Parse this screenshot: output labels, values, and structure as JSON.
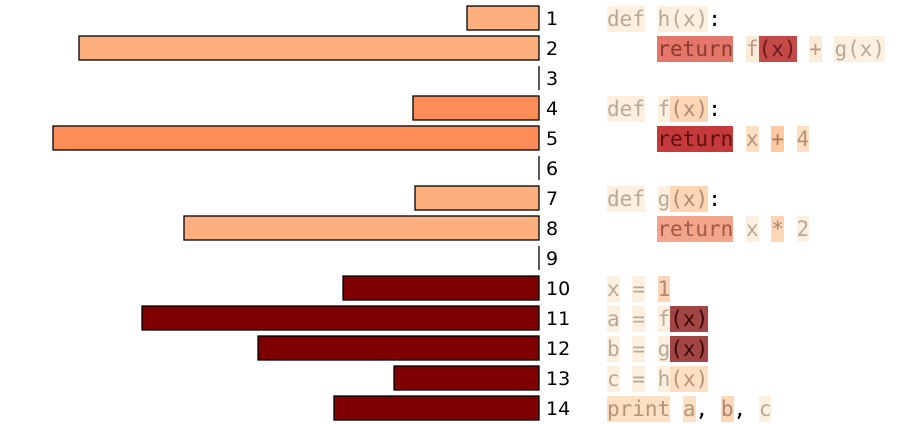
{
  "lines": [
    {
      "num": "1",
      "bar": 72,
      "color": "#fdb07e",
      "indent": 0,
      "tokens": [
        {
          "t": "def",
          "bg": "#fef0e1",
          "fg": "#b8a898"
        },
        {
          "t": " "
        },
        {
          "t": "h",
          "bg": "#fef0e1",
          "fg": "#b8a898"
        },
        {
          "t": "(x)",
          "bg": "#fef0e1",
          "fg": "#b8a898"
        },
        {
          "t": ":",
          "fg": "#000000"
        }
      ]
    },
    {
      "num": "2",
      "bar": 460,
      "color": "#fdb07e",
      "indent": 2,
      "tokens": [
        {
          "t": "return",
          "bg": "#e4776a",
          "fg": "#8a3a30"
        },
        {
          "t": " "
        },
        {
          "t": "f",
          "bg": "#fdebd8",
          "fg": "#c0988a"
        },
        {
          "t": "(x)",
          "bg": "#c44a4a",
          "fg": "#6a1a1a"
        },
        {
          "t": " "
        },
        {
          "t": "+",
          "bg": "#fdebd8",
          "fg": "#c0988a"
        },
        {
          "t": " "
        },
        {
          "t": "g",
          "bg": "#fef0e1",
          "fg": "#b8a898"
        },
        {
          "t": "(x)",
          "bg": "#fef0e1",
          "fg": "#b8a898"
        }
      ]
    },
    {
      "num": "3",
      "bar": 0,
      "color": "#fdb07e",
      "indent": 0,
      "tokens": []
    },
    {
      "num": "4",
      "bar": 126,
      "color": "#fc8d59",
      "indent": 0,
      "tokens": [
        {
          "t": "def",
          "bg": "#fef0e1",
          "fg": "#b8a898"
        },
        {
          "t": " "
        },
        {
          "t": "f",
          "bg": "#fef0e1",
          "fg": "#b8a898"
        },
        {
          "t": "(x)",
          "bg": "#fdd6b5",
          "fg": "#b08870"
        },
        {
          "t": ":",
          "fg": "#000000"
        }
      ]
    },
    {
      "num": "5",
      "bar": 486,
      "color": "#fc8d59",
      "indent": 2,
      "tokens": [
        {
          "t": "return",
          "bg": "#c53a3a",
          "fg": "#5e1010"
        },
        {
          "t": " "
        },
        {
          "t": "x",
          "bg": "#fde0c4",
          "fg": "#b89078"
        },
        {
          "t": " "
        },
        {
          "t": "+",
          "bg": "#fdc9a0",
          "fg": "#a87a5a"
        },
        {
          "t": " "
        },
        {
          "t": "4",
          "bg": "#fde0c4",
          "fg": "#b89078"
        }
      ]
    },
    {
      "num": "6",
      "bar": 0,
      "color": "#fc8d59",
      "indent": 0,
      "tokens": []
    },
    {
      "num": "7",
      "bar": 124,
      "color": "#fdb07e",
      "indent": 0,
      "tokens": [
        {
          "t": "def",
          "bg": "#fef0e1",
          "fg": "#b8a898"
        },
        {
          "t": " "
        },
        {
          "t": "g",
          "bg": "#fef0e1",
          "fg": "#b8a898"
        },
        {
          "t": "(x)",
          "bg": "#fdd6b5",
          "fg": "#b08870"
        },
        {
          "t": ":",
          "fg": "#000000"
        }
      ]
    },
    {
      "num": "8",
      "bar": 355,
      "color": "#fdb07e",
      "indent": 2,
      "tokens": [
        {
          "t": "return",
          "bg": "#f2a58a",
          "fg": "#a05a48"
        },
        {
          "t": " "
        },
        {
          "t": "x",
          "bg": "#fef0e1",
          "fg": "#b8a898"
        },
        {
          "t": " "
        },
        {
          "t": "*",
          "bg": "#fdd6b5",
          "fg": "#b08870"
        },
        {
          "t": " "
        },
        {
          "t": "2",
          "bg": "#fef0e1",
          "fg": "#b8a898"
        }
      ]
    },
    {
      "num": "9",
      "bar": 0,
      "color": "#fdb07e",
      "indent": 0,
      "tokens": []
    },
    {
      "num": "10",
      "bar": 196,
      "color": "#7f0000",
      "indent": 0,
      "tokens": [
        {
          "t": "x",
          "bg": "#fef0e1",
          "fg": "#b8a898"
        },
        {
          "t": " "
        },
        {
          "t": "=",
          "bg": "#fef0e1",
          "fg": "#b8a898"
        },
        {
          "t": " "
        },
        {
          "t": "1",
          "bg": "#fdd6b5",
          "fg": "#b08870"
        }
      ]
    },
    {
      "num": "11",
      "bar": 397,
      "color": "#7f0000",
      "indent": 0,
      "tokens": [
        {
          "t": "a",
          "bg": "#fef0e1",
          "fg": "#b8a898"
        },
        {
          "t": " "
        },
        {
          "t": "=",
          "bg": "#fef0e1",
          "fg": "#b8a898"
        },
        {
          "t": " "
        },
        {
          "t": "f",
          "bg": "#fef0e1",
          "fg": "#b8a898"
        },
        {
          "t": "(x)",
          "bg": "#a14545",
          "fg": "#3a0808"
        }
      ]
    },
    {
      "num": "12",
      "bar": 281,
      "color": "#7f0000",
      "indent": 0,
      "tokens": [
        {
          "t": "b",
          "bg": "#fef0e1",
          "fg": "#b8a898"
        },
        {
          "t": " "
        },
        {
          "t": "=",
          "bg": "#fef0e1",
          "fg": "#b8a898"
        },
        {
          "t": " "
        },
        {
          "t": "g",
          "bg": "#fef0e1",
          "fg": "#b8a898"
        },
        {
          "t": "(x)",
          "bg": "#a14545",
          "fg": "#3a0808"
        }
      ]
    },
    {
      "num": "13",
      "bar": 145,
      "color": "#7f0000",
      "indent": 0,
      "tokens": [
        {
          "t": "c",
          "bg": "#fef0e1",
          "fg": "#b8a898"
        },
        {
          "t": " "
        },
        {
          "t": "=",
          "bg": "#fef0e1",
          "fg": "#b8a898"
        },
        {
          "t": " "
        },
        {
          "t": "h",
          "bg": "#fef0e1",
          "fg": "#b8a898"
        },
        {
          "t": "(x)",
          "bg": "#fde0c4",
          "fg": "#b89078"
        }
      ]
    },
    {
      "num": "14",
      "bar": 205,
      "color": "#7f0000",
      "indent": 0,
      "tokens": [
        {
          "t": "print",
          "bg": "#fde0c4",
          "fg": "#b89078"
        },
        {
          "t": " "
        },
        {
          "t": "a",
          "bg": "#fde0c4",
          "fg": "#b89078"
        },
        {
          "t": ",",
          "fg": "#000000"
        },
        {
          "t": " "
        },
        {
          "t": "b",
          "bg": "#fdd6b5",
          "fg": "#b08870"
        },
        {
          "t": ",",
          "fg": "#000000"
        },
        {
          "t": " "
        },
        {
          "t": "c",
          "bg": "#fef0e1",
          "fg": "#b8a898"
        }
      ]
    }
  ]
}
